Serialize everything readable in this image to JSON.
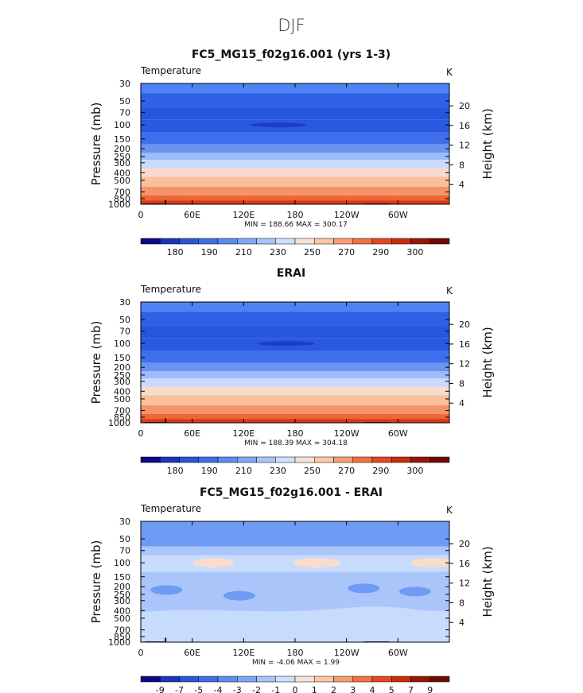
{
  "figure": {
    "season": "DJF",
    "colors": {
      "bar_palette": [
        "#0a0a82",
        "#1d33be",
        "#2a55d6",
        "#3f6ee8",
        "#5c8cf2",
        "#7fa6f6",
        "#a8c4fa",
        "#cde0fd",
        "#f5e3d8",
        "#fbc7a6",
        "#f79d73",
        "#f2703f",
        "#e64820",
        "#c82c0f",
        "#991508",
        "#6e0a04"
      ],
      "temp_levels": {
        "30": "#4f82f4",
        "50": "#2f61e6",
        "70": "#2756de",
        "100": "#2a59e0",
        "150": "#3f6fec",
        "200": "#6b93f3",
        "250": "#9dbbf8",
        "300": "#c8dbfc",
        "400": "#f7dccd",
        "500": "#f9c09c",
        "700": "#f59468",
        "850": "#ee6637",
        "1000": "#e4471f"
      },
      "diff_levels": {
        "a": "#6f9bf4",
        "b": "#a9c5fa",
        "c": "#c7dcfd",
        "warm": "#f9dccb"
      },
      "land": "#111111"
    }
  },
  "chart_data": [
    {
      "type": "heatmap",
      "title": "FC5_MG15_f02g16.001 (yrs 1-3)",
      "left_label": "Temperature",
      "units": "K",
      "ylabel": "Pressure (mb)",
      "ylabel_right": "Height (km)",
      "x_ticks": [
        "0",
        "60E",
        "120E",
        "180",
        "120W",
        "60W"
      ],
      "y_ticks": [
        "30",
        "50",
        "70",
        "100",
        "150",
        "200",
        "250",
        "300",
        "400",
        "500",
        "700",
        "850",
        "1000"
      ],
      "y_ticks_right": [
        "20",
        "16",
        "12",
        "8",
        "4"
      ],
      "stats": "MIN = 188.66  MAX = 300.17",
      "colorbar_labels": [
        "180",
        "190",
        "210",
        "230",
        "250",
        "270",
        "290",
        "300"
      ],
      "min": 188.66,
      "max": 300.17,
      "xlim": [
        0,
        360
      ],
      "ylim": [
        1000,
        30
      ]
    },
    {
      "type": "heatmap",
      "title": "ERAI",
      "left_label": "Temperature",
      "units": "K",
      "ylabel": "Pressure (mb)",
      "ylabel_right": "Height (km)",
      "x_ticks": [
        "0",
        "60E",
        "120E",
        "180",
        "120W",
        "60W"
      ],
      "y_ticks": [
        "30",
        "50",
        "70",
        "100",
        "150",
        "200",
        "250",
        "300",
        "400",
        "500",
        "700",
        "850",
        "1000"
      ],
      "y_ticks_right": [
        "20",
        "16",
        "12",
        "8",
        "4"
      ],
      "stats": "MIN = 188.39  MAX = 304.18",
      "colorbar_labels": [
        "180",
        "190",
        "210",
        "230",
        "250",
        "270",
        "290",
        "300"
      ],
      "min": 188.39,
      "max": 304.18,
      "xlim": [
        0,
        360
      ],
      "ylim": [
        1000,
        30
      ]
    },
    {
      "type": "heatmap",
      "title": "FC5_MG15_f02g16.001 - ERAI",
      "left_label": "Temperature",
      "units": "K",
      "ylabel": "Pressure (mb)",
      "ylabel_right": "Height (km)",
      "x_ticks": [
        "0",
        "60E",
        "120E",
        "180",
        "120W",
        "60W"
      ],
      "y_ticks": [
        "30",
        "50",
        "70",
        "100",
        "150",
        "200",
        "250",
        "300",
        "400",
        "500",
        "700",
        "850",
        "1000"
      ],
      "y_ticks_right": [
        "20",
        "16",
        "12",
        "8",
        "4"
      ],
      "stats": "MIN =   -4.06  MAX =    1.99",
      "colorbar_labels": [
        "-9",
        "-7",
        "-5",
        "-4",
        "-3",
        "-2",
        "-1",
        "0",
        "1",
        "2",
        "3",
        "4",
        "5",
        "7",
        "9"
      ],
      "min": -4.06,
      "max": 1.99,
      "xlim": [
        0,
        360
      ],
      "ylim": [
        1000,
        30
      ]
    }
  ]
}
